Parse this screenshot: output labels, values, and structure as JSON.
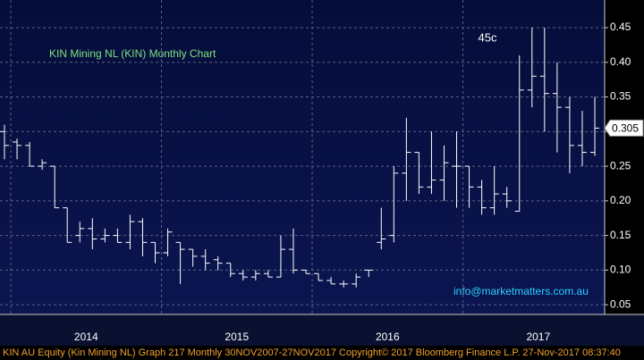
{
  "chart_data": {
    "type": "ohlc",
    "title": "KIN Mining NL (KIN) Monthly Chart",
    "annotation": "45c",
    "email": "info@marketmatters.com.au",
    "footer": "KIN AU Equity (Kin Mining NL) Graph 217  Monthly 30NOV2007-27NOV2017 Copyright© 2017 Bloomberg Finance L.P.  27-Nov-2017 08:37:40",
    "last_price": 0.305,
    "color": "#ffffff",
    "categories": [
      null,
      null,
      null,
      null,
      null,
      null,
      null,
      "2014",
      null,
      null,
      null,
      null,
      null,
      null,
      null,
      null,
      null,
      null,
      null,
      "2015",
      null,
      null,
      null,
      null,
      null,
      null,
      null,
      null,
      null,
      null,
      null,
      "2016",
      null,
      null,
      null,
      null,
      null,
      null,
      null,
      null,
      null,
      null,
      null,
      "2017",
      null,
      null,
      null,
      null
    ],
    "open": [
      0.3,
      0.285,
      0.28,
      0.25,
      0.25,
      0.19,
      0.15,
      0.16,
      0.145,
      0.15,
      0.14,
      0.17,
      0.14,
      0.125,
      0.14,
      0.13,
      0.12,
      0.115,
      0.11,
      0.095,
      0.09,
      0.095,
      0.09,
      0.13,
      0.1,
      0.095,
      0.085,
      0.08,
      0.08,
      0.1,
      0.14,
      0.15,
      0.24,
      0.27,
      0.22,
      0.23,
      0.25,
      0.25,
      0.22,
      0.19,
      0.21,
      0.185,
      0.36,
      0.38,
      0.355,
      0.335,
      0.28,
      0.27
    ],
    "high": [
      0.31,
      0.29,
      0.285,
      0.26,
      0.25,
      0.19,
      0.17,
      0.175,
      0.16,
      0.16,
      0.18,
      0.175,
      0.14,
      0.16,
      0.14,
      0.13,
      0.13,
      0.12,
      0.11,
      0.1,
      0.1,
      0.1,
      0.15,
      0.16,
      0.1,
      0.095,
      0.09,
      0.085,
      0.095,
      0.1,
      0.19,
      0.25,
      0.32,
      0.27,
      0.3,
      0.28,
      0.3,
      0.25,
      0.23,
      0.25,
      0.22,
      0.41,
      0.45,
      0.45,
      0.4,
      0.35,
      0.33,
      0.35
    ],
    "low": [
      0.26,
      0.26,
      0.25,
      0.245,
      0.19,
      0.14,
      0.14,
      0.13,
      0.14,
      0.14,
      0.13,
      0.12,
      0.11,
      0.12,
      0.08,
      0.105,
      0.1,
      0.1,
      0.09,
      0.085,
      0.085,
      0.09,
      0.09,
      0.095,
      0.095,
      0.085,
      0.08,
      0.075,
      0.075,
      0.09,
      0.13,
      0.14,
      0.2,
      0.21,
      0.21,
      0.2,
      0.19,
      0.19,
      0.18,
      0.18,
      0.19,
      0.185,
      0.335,
      0.3,
      0.27,
      0.24,
      0.25,
      0.265
    ],
    "close": [
      0.28,
      0.28,
      0.25,
      0.255,
      0.19,
      0.14,
      0.16,
      0.145,
      0.15,
      0.14,
      0.17,
      0.14,
      0.125,
      0.155,
      0.13,
      0.12,
      0.11,
      0.11,
      0.095,
      0.09,
      0.095,
      0.09,
      0.13,
      0.1,
      0.095,
      0.085,
      0.08,
      0.08,
      0.09,
      0.1,
      0.145,
      0.24,
      0.27,
      0.22,
      0.23,
      0.255,
      0.25,
      0.22,
      0.19,
      0.21,
      0.2,
      0.36,
      0.38,
      0.355,
      0.335,
      0.28,
      0.27,
      0.305
    ],
    "ylim": [
      0.036,
      0.49
    ],
    "yticks": [
      {
        "value": 0.05,
        "label": "0.05"
      },
      {
        "value": 0.1,
        "label": "0.10"
      },
      {
        "value": 0.15,
        "label": "0.15"
      },
      {
        "value": 0.2,
        "label": "0.20"
      },
      {
        "value": 0.25,
        "label": "0.25"
      },
      {
        "value": 0.3,
        "label": "0.30"
      },
      {
        "value": 0.35,
        "label": "0.35"
      },
      {
        "value": 0.4,
        "label": "0.40"
      },
      {
        "value": 0.45,
        "label": "0.45"
      }
    ],
    "grid": true
  }
}
